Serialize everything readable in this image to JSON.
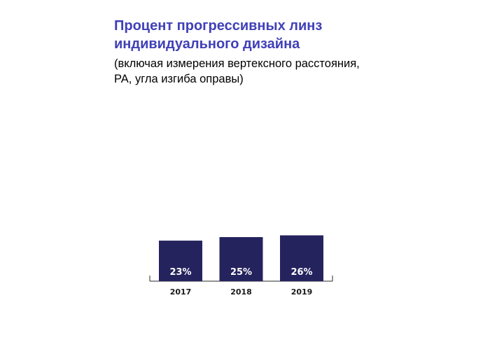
{
  "chart_data": {
    "type": "bar",
    "title": "Процент прогрессивных линз\nиндивидуального дизайна",
    "subtitle": "(включая измерения вертексного расстояния,\nPA, угла изгиба оправы)",
    "categories": [
      "2017",
      "2018",
      "2019"
    ],
    "values": [
      23,
      25,
      26
    ],
    "value_labels": [
      "23%",
      "25%",
      "26%"
    ],
    "bar_color": "#25235e",
    "title_color": "#4040b8",
    "grid": false,
    "legend": "none"
  }
}
